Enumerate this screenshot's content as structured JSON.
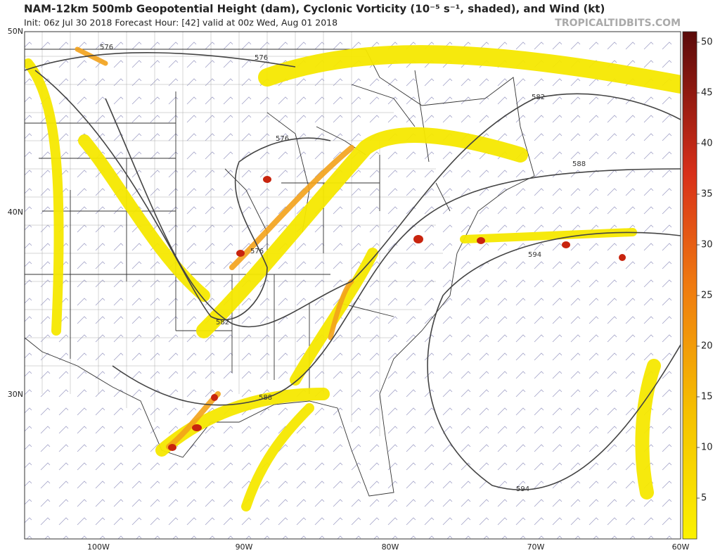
{
  "header": {
    "title": "NAM-12km 500mb Geopotential Height (dam), Cyclonic Vorticity (10⁻⁵ s⁻¹, shaded), and Wind (kt)",
    "subtitle": "Init: 06z Jul 30 2018   Forecast Hour: [42]   valid at 00z Wed, Aug 01 2018",
    "brand": "TROPICALTIDBITS.COM"
  },
  "lat_labels": [
    "50N",
    "40N",
    "30N"
  ],
  "lon_labels": [
    "100W",
    "90W",
    "80W",
    "70W",
    "60W"
  ],
  "contour_labels": [
    "576",
    "576",
    "576",
    "576",
    "582",
    "582",
    "588",
    "588",
    "594",
    "594"
  ],
  "colorbar_ticks": [
    5,
    10,
    15,
    20,
    25,
    30,
    35,
    40,
    45,
    50
  ]
}
